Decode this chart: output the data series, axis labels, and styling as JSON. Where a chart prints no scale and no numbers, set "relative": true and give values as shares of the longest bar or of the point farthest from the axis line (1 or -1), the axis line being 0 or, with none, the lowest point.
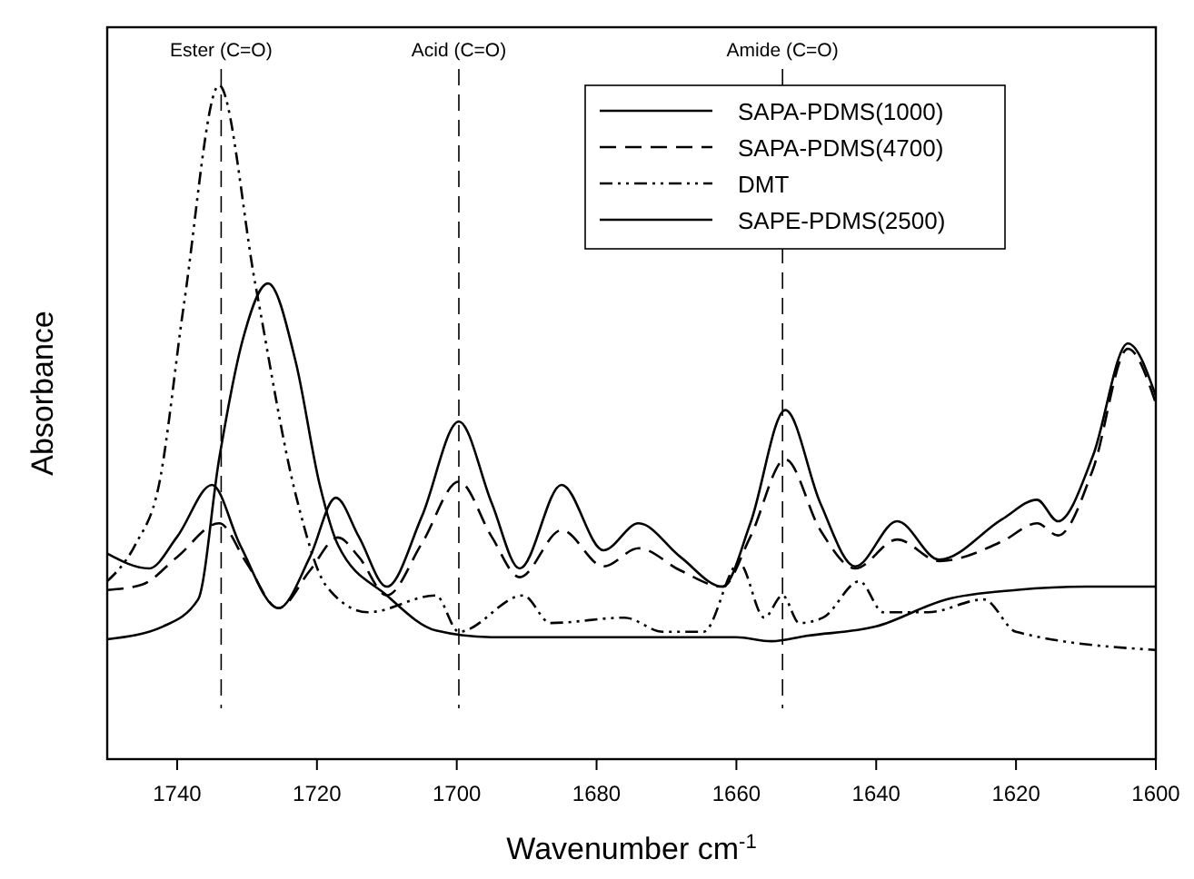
{
  "chart_data": {
    "type": "line",
    "xlabel": "Wavenumber cm$^{-1}$",
    "ylabel": "Absorbance",
    "relative": true,
    "xlim": [
      1750,
      1600
    ],
    "xticks": [
      1740,
      1720,
      1700,
      1680,
      1660,
      1640,
      1620,
      1600
    ],
    "grid": false,
    "legend": "top right",
    "marker": "none",
    "series": [
      {
        "name": "SAPA-PDMS(1000)",
        "color": "#000000",
        "line_style": "solid",
        "x": [
          1750,
          1744,
          1740,
          1735,
          1731,
          1725.5,
          1721,
          1717.3,
          1714,
          1710,
          1705,
          1699.7,
          1695,
          1691,
          1685,
          1679,
          1674,
          1668,
          1662,
          1658,
          1653,
          1648,
          1643,
          1637,
          1631,
          1622,
          1617,
          1614,
          1609,
          1604,
          1600
        ],
        "values": [
          0.305,
          0.283,
          0.33,
          0.407,
          0.318,
          0.224,
          0.3,
          0.388,
          0.33,
          0.256,
          0.36,
          0.501,
          0.38,
          0.283,
          0.407,
          0.31,
          0.35,
          0.3,
          0.256,
          0.35,
          0.518,
          0.38,
          0.286,
          0.353,
          0.296,
          0.356,
          0.385,
          0.353,
          0.45,
          0.617,
          0.539
        ]
      },
      {
        "name": "SAPA-PDMS(4700)",
        "color": "#000000",
        "line_style": "dashed",
        "x": [
          1750,
          1745,
          1740,
          1734,
          1730,
          1725.5,
          1721,
          1717,
          1714,
          1710,
          1705,
          1699.7,
          1695,
          1691,
          1685,
          1679,
          1674,
          1668,
          1662,
          1658,
          1653,
          1648,
          1643,
          1637,
          1631,
          1622,
          1617,
          1614,
          1609,
          1604,
          1600
        ],
        "values": [
          0.251,
          0.259,
          0.3,
          0.35,
          0.29,
          0.224,
          0.28,
          0.329,
          0.3,
          0.243,
          0.32,
          0.412,
          0.33,
          0.27,
          0.34,
          0.286,
          0.313,
          0.28,
          0.256,
          0.33,
          0.445,
          0.34,
          0.283,
          0.326,
          0.294,
          0.323,
          0.35,
          0.332,
          0.43,
          0.609,
          0.528
        ]
      },
      {
        "name": "DMT",
        "color": "#000000",
        "line_style": "dotted",
        "x": [
          1750,
          1746,
          1742.6,
          1739,
          1734,
          1728.8,
          1723,
          1718.6,
          1712.7,
          1703,
          1699.7,
          1690.5,
          1686.6,
          1676,
          1670.5,
          1664.7,
          1659.6,
          1656,
          1653.4,
          1651,
          1647.6,
          1642.4,
          1639,
          1632.6,
          1624.6,
          1620,
          1600
        ],
        "values": [
          0.264,
          0.318,
          0.407,
          0.677,
          1,
          0.704,
          0.391,
          0.256,
          0.218,
          0.243,
          0.189,
          0.243,
          0.202,
          0.21,
          0.189,
          0.189,
          0.291,
          0.21,
          0.243,
          0.202,
          0.21,
          0.264,
          0.218,
          0.218,
          0.237,
          0.189,
          0.162
        ]
      },
      {
        "name": "SAPE-PDMS(2500)",
        "color": "#000000",
        "line_style": "solid",
        "x": [
          1750,
          1742,
          1737,
          1734,
          1730.6,
          1727,
          1723,
          1719.6,
          1717,
          1710,
          1703,
          1695,
          1680,
          1660,
          1655,
          1650,
          1640,
          1630,
          1620,
          1610,
          1600
        ],
        "values": [
          0.178,
          0.197,
          0.237,
          0.445,
          0.623,
          0.706,
          0.588,
          0.407,
          0.318,
          0.243,
          0.191,
          0.181,
          0.181,
          0.181,
          0.175,
          0.183,
          0.197,
          0.237,
          0.251,
          0.256,
          0.256
        ]
      }
    ],
    "ref_lines": [
      {
        "axis": "x",
        "value": 1733.7,
        "label": "Ester (C=O)",
        "line_style": "dashed"
      },
      {
        "axis": "x",
        "value": 1699.7,
        "label": "Acid (C=O)",
        "line_style": "dashed"
      },
      {
        "axis": "x",
        "value": 1653.4,
        "label": "Amide (C=O)",
        "line_style": "dashed"
      }
    ]
  }
}
